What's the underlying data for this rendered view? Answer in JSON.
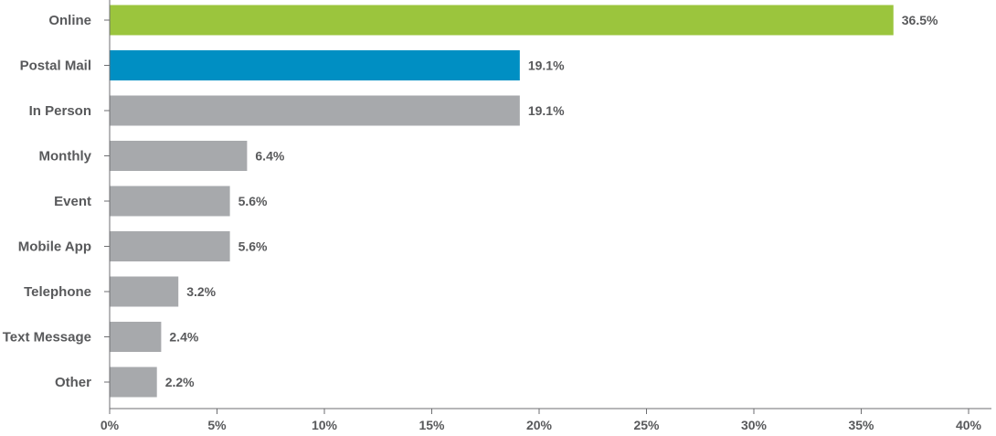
{
  "chart_data": {
    "type": "bar",
    "orientation": "horizontal",
    "categories": [
      "Online",
      "Postal Mail",
      "In Person",
      "Monthly",
      "Event",
      "Mobile App",
      "Telephone",
      "Text Message",
      "Other"
    ],
    "values": [
      36.5,
      19.1,
      19.1,
      6.4,
      5.6,
      5.6,
      3.2,
      2.4,
      2.2
    ],
    "value_labels": [
      "36.5%",
      "19.1%",
      "19.1%",
      "6.4%",
      "5.6%",
      "5.6%",
      "3.2%",
      "2.4%",
      "2.2%"
    ],
    "bar_colors": [
      "#9bc53d",
      "#008fc3",
      "#a7a9ac",
      "#a7a9ac",
      "#a7a9ac",
      "#a7a9ac",
      "#a7a9ac",
      "#a7a9ac",
      "#a7a9ac"
    ],
    "xlim": [
      0,
      40
    ],
    "x_ticks": [
      0,
      5,
      10,
      15,
      20,
      25,
      30,
      35,
      40
    ],
    "x_tick_labels": [
      "0%",
      "5%",
      "10%",
      "15%",
      "20%",
      "25%",
      "30%",
      "35%",
      "40%"
    ],
    "title": "",
    "xlabel": "",
    "ylabel": "",
    "grid": false,
    "legend": "none",
    "text_color": "#58595b",
    "axis_color": "#6d6e71"
  }
}
